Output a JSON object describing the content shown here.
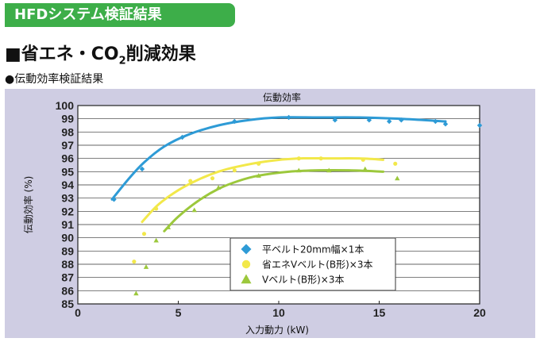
{
  "header": {
    "tab_label": "HFDシステム検証結果",
    "heading_prefix": "■省エネ・CO",
    "heading_sub": "2",
    "heading_suffix": "削減効果",
    "subheading": "●伝動効率検証結果"
  },
  "colors": {
    "header_green": "#3dae49",
    "panel_bg": "#cfcde3",
    "blue": "#2e9bd6",
    "yellow": "#f2e84a",
    "green": "#9cc83c"
  },
  "chart_data": {
    "type": "scatter",
    "title": "伝動効率",
    "xlabel": "入力動力 (kW)",
    "ylabel": "伝動効率 (%)",
    "xlim": [
      0,
      20
    ],
    "ylim": [
      85,
      100
    ],
    "x_ticks": [
      0,
      5,
      10,
      15,
      20
    ],
    "y_ticks": [
      85,
      86,
      87,
      88,
      89,
      90,
      91,
      92,
      93,
      94,
      95,
      96,
      97,
      98,
      99,
      100
    ],
    "grid": true,
    "legend_position": "bottom-right",
    "series": [
      {
        "name": "平ベルト20mm幅×1本",
        "marker": "diamond",
        "color": "#2e9bd6",
        "points": [
          [
            1.8,
            92.9
          ],
          [
            3.2,
            95.2
          ],
          [
            5.2,
            97.6
          ],
          [
            7.8,
            98.8
          ],
          [
            10.5,
            99.1
          ],
          [
            12.8,
            98.9
          ],
          [
            14.5,
            98.9
          ],
          [
            15.5,
            98.8
          ],
          [
            16.1,
            98.9
          ],
          [
            17.8,
            98.8
          ],
          [
            18.3,
            98.6
          ],
          [
            20.0,
            98.5
          ]
        ],
        "fit": [
          [
            1.7,
            92.9
          ],
          [
            2.5,
            94.4
          ],
          [
            3.3,
            95.7
          ],
          [
            4.3,
            96.9
          ],
          [
            5.5,
            97.8
          ],
          [
            7.0,
            98.5
          ],
          [
            8.5,
            98.9
          ],
          [
            10.0,
            99.1
          ],
          [
            12.0,
            99.1
          ],
          [
            14.0,
            99.1
          ],
          [
            16.0,
            99.0
          ],
          [
            18.3,
            98.8
          ]
        ]
      },
      {
        "name": "省エネVベルト(B形)×3本",
        "marker": "circle",
        "color": "#f2e84a",
        "points": [
          [
            2.8,
            88.2
          ],
          [
            3.3,
            90.3
          ],
          [
            3.9,
            92.2
          ],
          [
            5.6,
            94.3
          ],
          [
            6.7,
            94.5
          ],
          [
            7.8,
            95.1
          ],
          [
            9.0,
            95.6
          ],
          [
            11.0,
            96.0
          ],
          [
            12.1,
            96.0
          ],
          [
            14.2,
            95.9
          ],
          [
            15.8,
            95.6
          ]
        ],
        "fit": [
          [
            3.2,
            91.2
          ],
          [
            4.0,
            92.5
          ],
          [
            5.0,
            93.6
          ],
          [
            6.0,
            94.4
          ],
          [
            7.0,
            95.0
          ],
          [
            8.0,
            95.4
          ],
          [
            9.5,
            95.8
          ],
          [
            11.0,
            96.0
          ],
          [
            12.5,
            96.0
          ],
          [
            14.0,
            96.0
          ],
          [
            15.2,
            95.9
          ]
        ]
      },
      {
        "name": "Vベルト(B形)×3本",
        "marker": "triangle",
        "color": "#9cc83c",
        "points": [
          [
            2.9,
            85.8
          ],
          [
            3.4,
            87.8
          ],
          [
            3.9,
            89.8
          ],
          [
            4.5,
            90.8
          ],
          [
            5.8,
            92.1
          ],
          [
            7.0,
            93.8
          ],
          [
            9.0,
            94.7
          ],
          [
            11.0,
            95.1
          ],
          [
            12.5,
            95.1
          ],
          [
            14.3,
            95.2
          ],
          [
            15.9,
            94.5
          ]
        ],
        "fit": [
          [
            4.3,
            90.5
          ],
          [
            5.0,
            91.6
          ],
          [
            6.0,
            92.8
          ],
          [
            7.0,
            93.7
          ],
          [
            8.0,
            94.3
          ],
          [
            9.0,
            94.7
          ],
          [
            10.5,
            95.0
          ],
          [
            12.0,
            95.1
          ],
          [
            13.5,
            95.1
          ],
          [
            15.2,
            95.0
          ]
        ]
      }
    ]
  }
}
